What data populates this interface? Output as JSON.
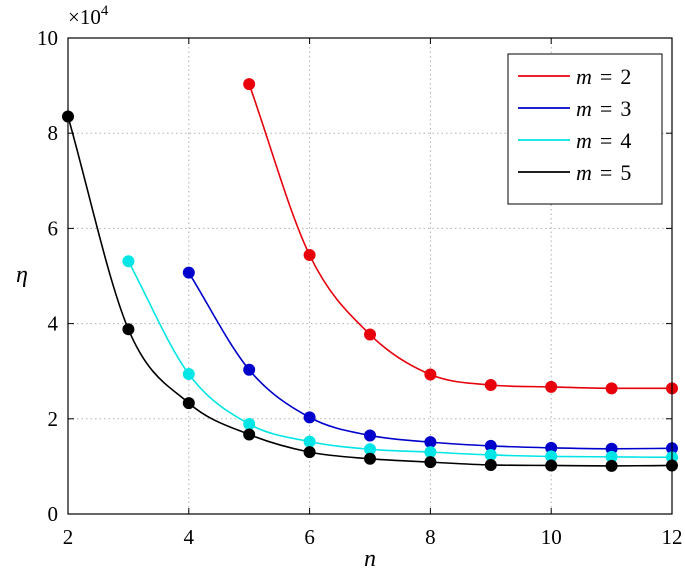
{
  "chart_data": {
    "type": "line",
    "xlabel": "n",
    "ylabel": "η",
    "y_multiplier_label": "×10",
    "y_multiplier_exponent": "4",
    "xlim": [
      2,
      12
    ],
    "ylim": [
      0,
      10
    ],
    "x_ticks": [
      2,
      4,
      6,
      8,
      10,
      12
    ],
    "y_ticks": [
      0,
      2,
      4,
      6,
      8,
      10
    ],
    "grid": true,
    "legend_position": "top-right",
    "series": [
      {
        "name": "m = 2",
        "legend_var": "m",
        "legend_eq": "=",
        "legend_val": "2",
        "color": "#e8000b",
        "x": [
          5,
          6,
          7,
          8,
          9,
          10,
          11,
          12
        ],
        "y": [
          9.03,
          5.44,
          3.77,
          2.93,
          2.71,
          2.67,
          2.64,
          2.64
        ]
      },
      {
        "name": "m = 3",
        "legend_var": "m",
        "legend_eq": "=",
        "legend_val": "3",
        "color": "#0000cc",
        "x": [
          4,
          5,
          6,
          7,
          8,
          9,
          10,
          11,
          12
        ],
        "y": [
          5.07,
          3.03,
          2.03,
          1.65,
          1.51,
          1.43,
          1.39,
          1.37,
          1.38
        ]
      },
      {
        "name": "m = 4",
        "legend_var": "m",
        "legend_eq": "=",
        "legend_val": "4",
        "color": "#00e5e5",
        "x": [
          3,
          4,
          5,
          6,
          7,
          8,
          9,
          10,
          11,
          12
        ],
        "y": [
          5.31,
          2.94,
          1.89,
          1.52,
          1.36,
          1.3,
          1.24,
          1.21,
          1.2,
          1.19
        ]
      },
      {
        "name": "m = 5",
        "legend_var": "m",
        "legend_eq": "=",
        "legend_val": "5",
        "color": "#000000",
        "x": [
          2,
          3,
          4,
          5,
          6,
          7,
          8,
          9,
          10,
          11,
          12
        ],
        "y": [
          8.35,
          3.88,
          2.33,
          1.67,
          1.3,
          1.16,
          1.09,
          1.03,
          1.02,
          1.01,
          1.02
        ]
      }
    ]
  }
}
